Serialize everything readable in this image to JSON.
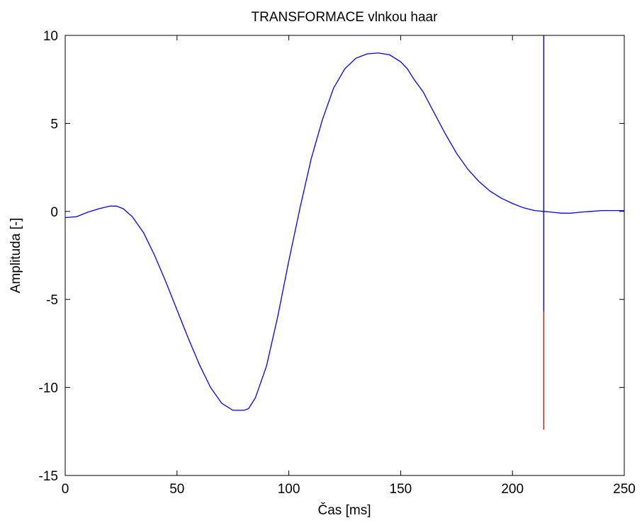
{
  "chart_data": {
    "type": "line",
    "title": "TRANSFORMACE vlnkou haar",
    "xlabel": "Čas [ms]",
    "ylabel": "Amplituda [-]",
    "xlim": [
      0,
      250
    ],
    "ylim": [
      -15,
      10
    ],
    "xticks": [
      0,
      50,
      100,
      150,
      200,
      250
    ],
    "yticks": [
      -15,
      -10,
      -5,
      0,
      5,
      10
    ],
    "grid": false,
    "series": [
      {
        "color": "#0000ff",
        "x": [
          0,
          5,
          10,
          15,
          20,
          23,
          26,
          30,
          35,
          40,
          45,
          50,
          55,
          60,
          65,
          70,
          75,
          80,
          82,
          85,
          90,
          95,
          100,
          105,
          110,
          115,
          120,
          125,
          130,
          135,
          140,
          145,
          150,
          153,
          156,
          160,
          165,
          170,
          175,
          180,
          185,
          190,
          195,
          200,
          205,
          210,
          214,
          218,
          222,
          226,
          230,
          235,
          240,
          245,
          250
        ],
        "y": [
          -0.35,
          -0.3,
          -0.05,
          0.15,
          0.3,
          0.3,
          0.15,
          -0.3,
          -1.2,
          -2.5,
          -4.0,
          -5.6,
          -7.2,
          -8.7,
          -10.0,
          -10.9,
          -11.3,
          -11.3,
          -11.2,
          -10.6,
          -8.8,
          -6.0,
          -2.8,
          0.2,
          3.0,
          5.2,
          7.0,
          8.1,
          8.7,
          8.95,
          9.0,
          8.9,
          8.5,
          8.1,
          7.5,
          6.8,
          5.6,
          4.4,
          3.3,
          2.4,
          1.7,
          1.15,
          0.75,
          0.45,
          0.2,
          0.05,
          0.0,
          -0.05,
          -0.1,
          -0.1,
          -0.05,
          0.0,
          0.05,
          0.05,
          0.05
        ]
      }
    ],
    "markers": [
      {
        "color": "#0000ff",
        "x": 214,
        "y_from": -5.7,
        "y_to": 10
      },
      {
        "color": "#ff0000",
        "x": 214,
        "y_from": -12.4,
        "y_to": -5.7
      }
    ]
  }
}
